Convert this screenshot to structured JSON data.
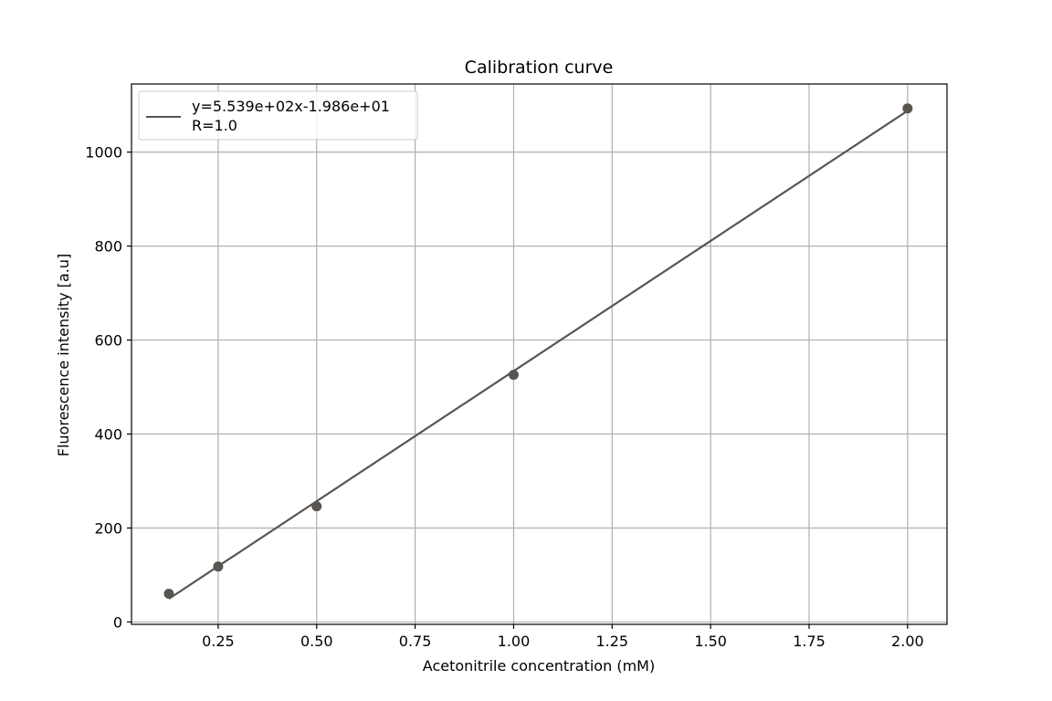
{
  "chart_data": {
    "type": "scatter",
    "title": "Calibration curve",
    "xlabel": "Acetonitrile concentration (mM)",
    "ylabel": "Fluorescence intensity [a.u]",
    "xlim": [
      0.03,
      2.1
    ],
    "ylim": [
      -5,
      1145
    ],
    "xticks": [
      0.25,
      0.5,
      0.75,
      1.0,
      1.25,
      1.5,
      1.75,
      2.0
    ],
    "xtick_labels": [
      "0.25",
      "0.50",
      "0.75",
      "1.00",
      "1.25",
      "1.50",
      "1.75",
      "2.00"
    ],
    "yticks": [
      0,
      200,
      400,
      600,
      800,
      1000
    ],
    "ytick_labels": [
      "0",
      "200",
      "400",
      "600",
      "800",
      "1000"
    ],
    "grid": true,
    "legend_position": "top-left",
    "colors": {
      "series": "#595550",
      "grid": "#b0b0b0",
      "axes": "#000000"
    },
    "series": [
      {
        "kind": "scatter",
        "x": [
          0.125,
          0.25,
          0.5,
          1.0,
          2.0
        ],
        "y": [
          60,
          118,
          246,
          526,
          1093
        ]
      },
      {
        "kind": "line",
        "name": "y=5.539e+02x-1.986e+01\nR=1.0",
        "legend_lines": [
          "y=5.539e+02x-1.986e+01",
          "R=1.0"
        ],
        "slope": 553.9,
        "intercept": -19.86,
        "x_range": [
          0.125,
          2.0
        ]
      }
    ]
  }
}
